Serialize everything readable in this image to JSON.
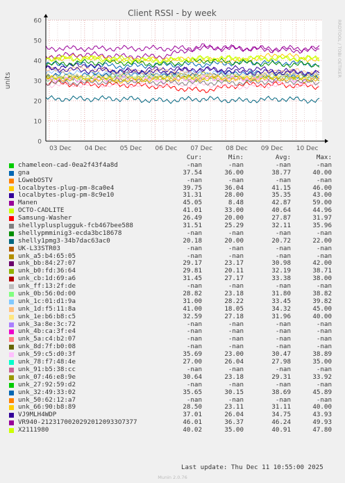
{
  "chart_data": {
    "type": "line",
    "title": "Client RSSI - by week",
    "ylabel": "units",
    "side_label": "RRDTOOL / TOBI OETIKER",
    "ylim": [
      0,
      60
    ],
    "yticks": [
      0,
      10,
      20,
      30,
      40,
      50,
      60
    ],
    "grid": true,
    "x": [
      "03 Dec",
      "04 Dec",
      "05 Dec",
      "06 Dec",
      "07 Dec",
      "08 Dec",
      "09 Dec",
      "10 Dec"
    ],
    "series": [
      {
        "name": "gna",
        "color": "#0066b3",
        "values": [
          38,
          38,
          37,
          38,
          38,
          39,
          39,
          38
        ]
      },
      {
        "name": "localbytes-plug-pm-8ca0e4",
        "color": "#ffcc00",
        "values": [
          41,
          42,
          40,
          41,
          40,
          40,
          43,
          40
        ]
      },
      {
        "name": "localbytes-plug-pm-8c9e10",
        "color": "#330099",
        "values": [
          36,
          38,
          34,
          36,
          35,
          36,
          35,
          33
        ]
      },
      {
        "name": "Manen",
        "color": "#990099",
        "values": [
          42,
          43,
          42,
          42,
          47,
          46,
          45,
          45
        ]
      },
      {
        "name": "OCTO-CADLITE",
        "color": "#ccff00",
        "values": [
          41,
          41,
          40,
          40,
          41,
          41,
          41,
          41
        ]
      },
      {
        "name": "Samsung-Washer",
        "color": "#ff0000",
        "values": [
          29,
          28,
          28,
          27,
          25,
          28,
          28,
          27
        ]
      },
      {
        "name": "shellyplusplugguk-fcb467bee588",
        "color": "#808080",
        "values": [
          32,
          31,
          33,
          33,
          32,
          33,
          33,
          32
        ]
      },
      {
        "name": "shelly1pmg3-34b7dac63ac0",
        "color": "#006680",
        "values": [
          21,
          21,
          21,
          20,
          21,
          20,
          21,
          20
        ]
      },
      {
        "name": "unk_bb:84:27:07",
        "color": "#94a600",
        "values": [
          31,
          31,
          30,
          31,
          31,
          31,
          31,
          30
        ]
      },
      {
        "name": "unk_b0:fd:36:64",
        "color": "#94a600",
        "values": [
          32,
          32,
          32,
          32,
          33,
          32,
          32,
          32
        ]
      },
      {
        "name": "unk_cb:1d:69:a6",
        "color": "#0066b3",
        "values": [
          33,
          33,
          34,
          33,
          33,
          34,
          33,
          32
        ]
      },
      {
        "name": "unk_0b:56:0d:00",
        "color": "#8fdf8f",
        "values": [
          31,
          31,
          32,
          32,
          31,
          32,
          32,
          31
        ]
      },
      {
        "name": "unk_1c:01:d1:9a",
        "color": "#8fc1ff",
        "values": [
          34,
          34,
          33,
          33,
          34,
          33,
          33,
          34
        ]
      },
      {
        "name": "unk_1d:f5:11:8a",
        "color": "#ffbf8f",
        "values": [
          35,
          36,
          34,
          35,
          33,
          30,
          35,
          34
        ]
      },
      {
        "name": "unk_1e:b6:b8:c5",
        "color": "#ffe68f",
        "values": [
          32,
          32,
          31,
          32,
          32,
          32,
          33,
          32
        ]
      },
      {
        "name": "unk_59:c5:d0:3f",
        "color": "#ff8fff",
        "values": [
          31,
          30,
          31,
          30,
          31,
          31,
          30,
          30
        ]
      },
      {
        "name": "unk_78:f7:48:4e",
        "color": "#ffbfe0",
        "values": [
          28,
          28,
          28,
          28,
          28,
          27,
          28,
          28
        ]
      },
      {
        "name": "unk_07:46:e8:9e",
        "color": "#808080",
        "values": [
          29,
          29,
          30,
          29,
          29,
          29,
          30,
          29
        ]
      },
      {
        "name": "unk_32:49:33:02",
        "color": "#008f00",
        "values": [
          38,
          39,
          39,
          38,
          40,
          39,
          38,
          38
        ]
      },
      {
        "name": "unk_66:90:b8:89",
        "color": "#ffcc00",
        "values": [
          31,
          31,
          30,
          31,
          31,
          31,
          31,
          31
        ]
      },
      {
        "name": "VJ9MLH4WDP",
        "color": "#330099",
        "values": [
          36,
          35,
          35,
          34,
          36,
          34,
          34,
          34
        ]
      },
      {
        "name": "VR940-21231700202920120933O7377",
        "color": "#990099",
        "values": [
          46,
          46,
          46,
          46,
          46,
          46,
          46,
          46
        ]
      },
      {
        "name": "X2111980",
        "color": "#ccff00",
        "values": [
          41,
          41,
          41,
          40,
          41,
          41,
          41,
          41
        ]
      }
    ]
  },
  "legend": {
    "headers": {
      "cur": "Cur:",
      "min": "Min:",
      "avg": "Avg:",
      "max": "Max:"
    },
    "rows": [
      {
        "name": "chameleon-cad-0ea2f43f4a8d",
        "color": "#00cc00",
        "cur": "-nan",
        "min": "-nan",
        "avg": "-nan",
        "max": "-nan"
      },
      {
        "name": "gna",
        "color": "#0066b3",
        "cur": "37.54",
        "min": "36.00",
        "avg": "38.77",
        "max": "40.00"
      },
      {
        "name": "LGwebOSTV",
        "color": "#ff8000",
        "cur": "-nan",
        "min": "-nan",
        "avg": "-nan",
        "max": "-nan"
      },
      {
        "name": "localbytes-plug-pm-8ca0e4",
        "color": "#ffcc00",
        "cur": "39.75",
        "min": "36.04",
        "avg": "41.15",
        "max": "46.00"
      },
      {
        "name": "localbytes-plug-pm-8c9e10",
        "color": "#330099",
        "cur": "31.31",
        "min": "28.00",
        "avg": "35.35",
        "max": "43.00"
      },
      {
        "name": "Manen",
        "color": "#990099",
        "cur": "45.05",
        "min": "8.48",
        "avg": "42.87",
        "max": "59.00"
      },
      {
        "name": "OCTO-CADLITE",
        "color": "#ccff00",
        "cur": "41.01",
        "min": "33.00",
        "avg": "40.64",
        "max": "44.96"
      },
      {
        "name": "Samsung-Washer",
        "color": "#ff0000",
        "cur": "26.49",
        "min": "20.00",
        "avg": "27.87",
        "max": "31.97"
      },
      {
        "name": "shellyplusplugguk-fcb467bee588",
        "color": "#808080",
        "cur": "31.51",
        "min": "25.29",
        "avg": "32.11",
        "max": "35.96"
      },
      {
        "name": "shellypmminig3-ecda3bc18678",
        "color": "#008f00",
        "cur": "-nan",
        "min": "-nan",
        "avg": "-nan",
        "max": "-nan"
      },
      {
        "name": "shelly1pmg3-34b7dac63ac0",
        "color": "#006680",
        "cur": "20.18",
        "min": "20.00",
        "avg": "20.72",
        "max": "22.00"
      },
      {
        "name": "UK-L33STR03",
        "color": "#b35a00",
        "cur": "-nan",
        "min": "-nan",
        "avg": "-nan",
        "max": "-nan"
      },
      {
        "name": "unk_a5:b4:65:05",
        "color": "#b38f00",
        "cur": "-nan",
        "min": "-nan",
        "avg": "-nan",
        "max": "-nan"
      },
      {
        "name": "unk_bb:84:27:07",
        "color": "#6b006b",
        "cur": "29.17",
        "min": "23.17",
        "avg": "30.98",
        "max": "42.00"
      },
      {
        "name": "unk_b0:fd:36:64",
        "color": "#8fb300",
        "cur": "29.81",
        "min": "20.11",
        "avg": "32.19",
        "max": "38.71"
      },
      {
        "name": "unk_cb:1d:69:a6",
        "color": "#b30000",
        "cur": "31.45",
        "min": "27.17",
        "avg": "33.38",
        "max": "38.00"
      },
      {
        "name": "unk_ff:13:2f:de",
        "color": "#bebebe",
        "cur": "-nan",
        "min": "-nan",
        "avg": "-nan",
        "max": "-nan"
      },
      {
        "name": "unk_0b:56:0d:00",
        "color": "#80ff80",
        "cur": "28.82",
        "min": "23.18",
        "avg": "31.80",
        "max": "38.82"
      },
      {
        "name": "unk_1c:01:d1:9a",
        "color": "#80c9ff",
        "cur": "31.00",
        "min": "28.22",
        "avg": "33.45",
        "max": "39.82"
      },
      {
        "name": "unk_1d:f5:11:8a",
        "color": "#ffc080",
        "cur": "41.00",
        "min": "18.05",
        "avg": "34.32",
        "max": "45.00"
      },
      {
        "name": "unk_1e:b6:b8:c5",
        "color": "#ffe680",
        "cur": "32.59",
        "min": "27.18",
        "avg": "31.96",
        "max": "40.00"
      },
      {
        "name": "unk_3a:8e:3c:72",
        "color": "#aa80ff",
        "cur": "-nan",
        "min": "-nan",
        "avg": "-nan",
        "max": "-nan"
      },
      {
        "name": "unk_4b:ca:3f:e4",
        "color": "#ee00cc",
        "cur": "-nan",
        "min": "-nan",
        "avg": "-nan",
        "max": "-nan"
      },
      {
        "name": "unk_5a:c4:b2:07",
        "color": "#ff8080",
        "cur": "-nan",
        "min": "-nan",
        "avg": "-nan",
        "max": "-nan"
      },
      {
        "name": "unk_8d:7f:b0:08",
        "color": "#666600",
        "cur": "-nan",
        "min": "-nan",
        "avg": "-nan",
        "max": "-nan"
      },
      {
        "name": "unk_59:c5:d0:3f",
        "color": "#ffbfff",
        "cur": "35.69",
        "min": "23.00",
        "avg": "30.47",
        "max": "38.89"
      },
      {
        "name": "unk_78:f7:48:4e",
        "color": "#00ffcc",
        "cur": "27.00",
        "min": "26.04",
        "avg": "27.98",
        "max": "35.00"
      },
      {
        "name": "unk_91:b5:38:cc",
        "color": "#cc6699",
        "cur": "-nan",
        "min": "-nan",
        "avg": "-nan",
        "max": "-nan"
      },
      {
        "name": "unk_07:46:e8:9e",
        "color": "#999900",
        "cur": "30.64",
        "min": "23.18",
        "avg": "29.31",
        "max": "33.92"
      },
      {
        "name": "unk_27:92:59:d2",
        "color": "#00cc00",
        "cur": "-nan",
        "min": "-nan",
        "avg": "-nan",
        "max": "-nan"
      },
      {
        "name": "unk_32:49:33:02",
        "color": "#0066b3",
        "cur": "35.65",
        "min": "30.15",
        "avg": "38.69",
        "max": "45.89"
      },
      {
        "name": "unk_50:62:12:a7",
        "color": "#ff8000",
        "cur": "-nan",
        "min": "-nan",
        "avg": "-nan",
        "max": "-nan"
      },
      {
        "name": "unk_66:90:b8:89",
        "color": "#ffcc00",
        "cur": "28.50",
        "min": "23.11",
        "avg": "31.11",
        "max": "40.00"
      },
      {
        "name": "VJ9MLH4WDP",
        "color": "#330099",
        "cur": "37.01",
        "min": "26.04",
        "avg": "34.75",
        "max": "43.93"
      },
      {
        "name": "VR940-21231700202920120933O7377",
        "color": "#990099",
        "cur": "46.01",
        "min": "36.37",
        "avg": "46.24",
        "max": "49.93"
      },
      {
        "name": "X2111980",
        "color": "#ccff00",
        "cur": "40.02",
        "min": "35.00",
        "avg": "40.91",
        "max": "47.80"
      }
    ]
  },
  "last_update": "Last update: Thu Dec 11 10:55:00 2025",
  "footer": "Munin 2.0.76"
}
